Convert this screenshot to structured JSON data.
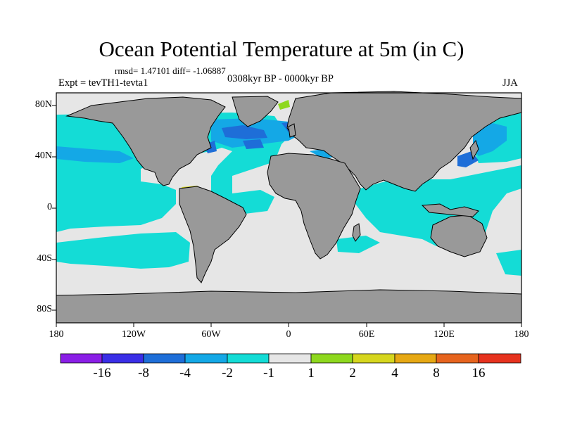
{
  "title": "Ocean Potential Temperature at 5m (in C)",
  "stats": "rmsd= 1.47101 diff= -1.06887",
  "experiment": "Expt = tevTH1-tevta1",
  "period": "0308kyr BP - 0000kyr BP",
  "season": "JJA",
  "x_ticks": [
    "180",
    "120W",
    "60W",
    "0",
    "60E",
    "120E",
    "180"
  ],
  "y_ticks": [
    "80N",
    "40N",
    "0",
    "40S",
    "80S"
  ],
  "colorbar": {
    "labels": [
      "-16",
      "-8",
      "-4",
      "-2",
      "-1",
      "1",
      "2",
      "4",
      "8",
      "16"
    ],
    "colors": [
      "#8a1ee6",
      "#3a2ee6",
      "#1e6ed8",
      "#14a8e6",
      "#14dcd6",
      "#e6e6e6",
      "#8ed81e",
      "#d6d61e",
      "#e6a814",
      "#e6641e",
      "#e6321e"
    ]
  },
  "map": {
    "land_color": "#999999",
    "ocean_color": "#e6e6e6",
    "colors": {
      "cyan": "#14dcd6",
      "sky": "#14a8e6",
      "blue": "#1e6ed8",
      "yellow": "#d6d61e",
      "green": "#8ed81e"
    }
  }
}
